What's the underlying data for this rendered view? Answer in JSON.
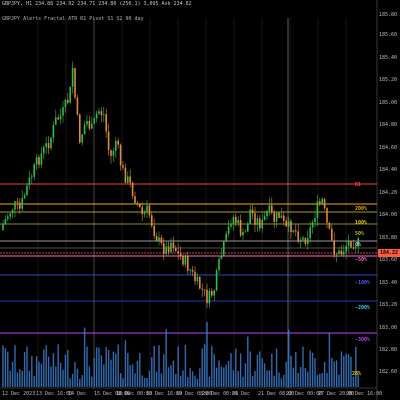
{
  "header": {
    "line1": "GBPJPY, H1  234.88  234.92  234.71  234.80  (250.1)  3,095  Ask  234.82",
    "line2": "GBPJPY Alerts  Fractal ATR  R1 Pivot  S1 S2  90 day"
  },
  "price_axis": {
    "labels": [
      "185.80",
      "185.60",
      "185.40",
      "185.20",
      "185.00",
      "184.80",
      "184.60",
      "184.40",
      "184.20",
      "184.00",
      "183.80",
      "183.60",
      "183.40",
      "183.20",
      "183.00",
      "182.80",
      "182.60"
    ],
    "current_price": "184.22"
  },
  "time_axis": {
    "labels": [
      "12 Dec 2023",
      "13 Dec 16:00",
      "14 Dec",
      "15 Dec 08:00",
      "18 Dec 00:00",
      "18 Dec 16:00",
      "19 Dec 08:00",
      "20 Dec 00:00",
      "21 Dec",
      "21 Dec 08:00",
      "22 Dec 00:00",
      "27 Dec 20:00",
      "28 Dec 16:00"
    ]
  },
  "levels": [
    {
      "label": "R1",
      "color": "#ff3d3d"
    },
    {
      "label": "200%",
      "color": "#f0b000"
    },
    {
      "label": "100%",
      "color": "#e6d000"
    },
    {
      "label": "50%",
      "color": "#c0c020"
    },
    {
      "label": "0%",
      "color": "#c8c8c8"
    },
    {
      "label": "-50%",
      "color": "#ff6ad5"
    },
    {
      "label": "-100%",
      "color": "#4060ff"
    },
    {
      "label": "-200%",
      "color": "#40d0ff"
    },
    {
      "label": "-300%",
      "color": "#c040ff"
    },
    {
      "label": "28%",
      "color": "#ffd000"
    }
  ],
  "colors": {
    "background": "#000000",
    "candle_up": "#2fbf4a",
    "candle_down": "#e08a3a",
    "volume": "#3a7fd0",
    "grid": "#2a2a2a"
  }
}
